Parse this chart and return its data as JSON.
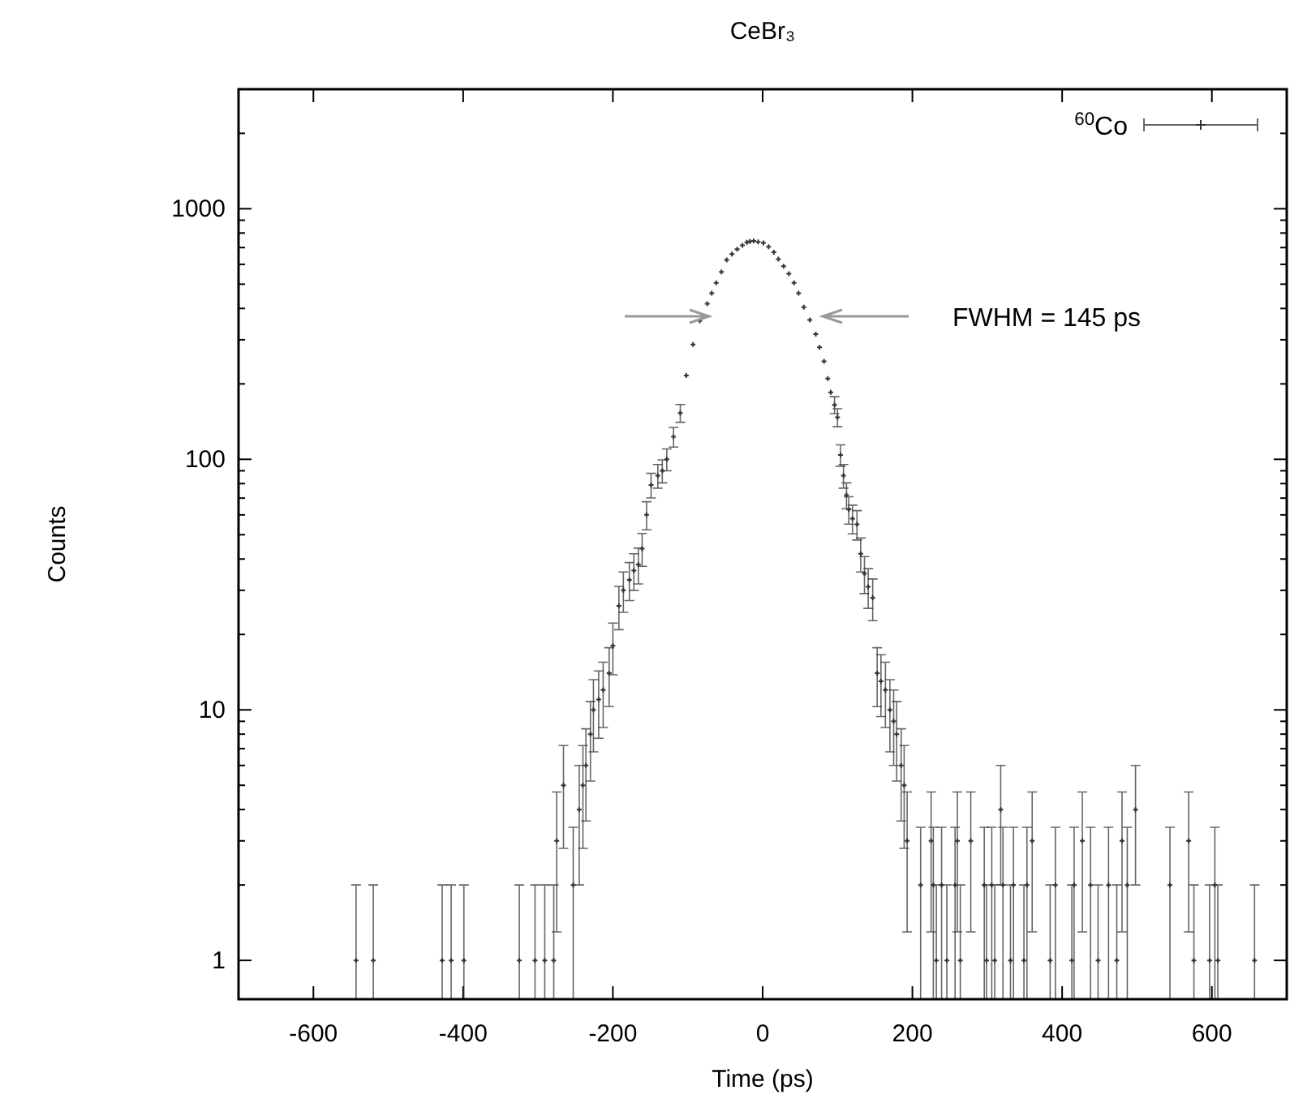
{
  "chart_data": {
    "type": "scatter",
    "title": "CeBr₃",
    "xlabel": "Time (ps)",
    "ylabel": "Counts",
    "log": "y",
    "marker": "cross",
    "legend": "top right",
    "grid": false,
    "xlim": [
      -700,
      700
    ],
    "xticks": [
      -600,
      -400,
      -200,
      0,
      200,
      400,
      600
    ],
    "ylim": [
      0.7,
      3000
    ],
    "yticks": [
      1,
      {
        "value": 2,
        "label": null
      },
      {
        "value": 3,
        "label": null
      },
      {
        "value": 4,
        "label": null
      },
      {
        "value": 5,
        "label": null
      },
      {
        "value": 6,
        "label": null
      },
      {
        "value": 7,
        "label": null
      },
      {
        "value": 8,
        "label": null
      },
      {
        "value": 9,
        "label": null
      },
      10,
      {
        "value": 20,
        "label": null
      },
      {
        "value": 30,
        "label": null
      },
      {
        "value": 40,
        "label": null
      },
      {
        "value": 50,
        "label": null
      },
      {
        "value": 60,
        "label": null
      },
      {
        "value": 70,
        "label": null
      },
      {
        "value": 80,
        "label": null
      },
      {
        "value": 90,
        "label": null
      },
      100,
      {
        "value": 200,
        "label": null
      },
      {
        "value": 300,
        "label": null
      },
      {
        "value": 400,
        "label": null
      },
      {
        "value": 500,
        "label": null
      },
      {
        "value": 600,
        "label": null
      },
      {
        "value": 700,
        "label": null
      },
      {
        "value": 800,
        "label": null
      },
      {
        "value": 900,
        "label": null
      },
      1000,
      {
        "value": 2000,
        "label": null
      }
    ],
    "annotations": [
      "FWHM = 145 ps"
    ],
    "series": [
      {
        "name": "$^{60}$Co",
        "color": "#333333",
        "x": [
          -543,
          -520,
          -428,
          -416,
          -399,
          -325,
          -304,
          -291,
          -279,
          -275,
          -266,
          -253,
          -245,
          -240,
          -236,
          -230,
          -226,
          -219,
          -213,
          -205,
          -200,
          -192,
          -186,
          -178,
          -172,
          -166,
          -161,
          -155,
          -149,
          -140,
          -134,
          -128,
          -119,
          -110,
          -102,
          -93,
          -84,
          -74,
          -68,
          -62,
          -55,
          -48,
          -41,
          -34,
          -27,
          -21,
          -17,
          -12,
          -6,
          1,
          8,
          15,
          21,
          28,
          35,
          42,
          48,
          55,
          63,
          71,
          76,
          82,
          87,
          91,
          96,
          100,
          104,
          108,
          112,
          115,
          120,
          126,
          131,
          136,
          141,
          147,
          153,
          158,
          164,
          170,
          175,
          179,
          185,
          189,
          193,
          211,
          225,
          228,
          232,
          239,
          246,
          257,
          260,
          264,
          278,
          296,
          299,
          306,
          310,
          318,
          321,
          331,
          335,
          349,
          353,
          360,
          384,
          391,
          413,
          416,
          427,
          438,
          448,
          462,
          473,
          480,
          487,
          498,
          544,
          569,
          576,
          597,
          604,
          608,
          657
        ],
        "values": [
          1,
          1,
          1,
          1,
          1,
          1,
          1,
          1,
          1,
          3,
          5,
          2,
          4,
          5,
          6,
          8,
          10,
          11,
          12,
          14,
          18,
          26,
          30,
          33,
          36,
          38,
          44,
          60,
          79,
          86,
          90,
          100,
          123,
          153,
          216,
          287,
          357,
          418,
          460,
          506,
          560,
          625,
          660,
          690,
          715,
          735,
          740,
          745,
          738,
          730,
          705,
          670,
          630,
          590,
          550,
          506,
          460,
          405,
          360,
          316,
          280,
          246,
          210,
          185,
          165,
          147,
          104,
          86,
          72,
          63,
          58,
          55,
          42,
          35,
          31,
          28,
          14,
          13,
          12,
          10,
          9,
          8,
          6,
          5,
          3,
          2,
          3,
          2,
          1,
          2,
          1,
          2,
          3,
          1,
          3,
          2,
          1,
          2,
          1,
          4,
          2,
          1,
          2,
          1,
          2,
          3,
          1,
          2,
          1,
          2,
          3,
          2,
          1,
          2,
          1,
          3,
          2,
          4,
          2,
          3,
          1,
          1,
          2,
          1,
          1
        ],
        "errors": [
          [
            0.7,
            2
          ],
          [
            0.7,
            2
          ],
          [
            0.7,
            2
          ],
          [
            0.7,
            2
          ],
          [
            0.7,
            2
          ],
          [
            0.7,
            2
          ],
          [
            0.7,
            2
          ],
          [
            0.7,
            2
          ],
          [
            0.7,
            2
          ],
          1.7,
          2.2,
          [
            0.7,
            3.4
          ],
          2,
          2.2,
          2.4,
          2.8,
          3.2,
          3.3,
          3.5,
          3.7,
          4.2,
          5.1,
          5.5,
          5.7,
          6,
          6.2,
          6.6,
          7.7,
          8.9,
          9.3,
          9.5,
          10,
          11.1,
          12.4,
          null,
          null,
          null,
          null,
          null,
          null,
          null,
          null,
          null,
          null,
          null,
          null,
          null,
          null,
          null,
          null,
          null,
          null,
          null,
          null,
          null,
          null,
          null,
          null,
          null,
          null,
          null,
          null,
          null,
          null,
          12.8,
          12.1,
          10.2,
          9.3,
          8.5,
          7.9,
          7.6,
          7.4,
          6.5,
          5.9,
          5.6,
          5.3,
          3.7,
          3.6,
          3.5,
          3.2,
          3,
          2.8,
          2.4,
          2.2,
          1.7,
          [
            0.7,
            3.4
          ],
          1.7,
          [
            0.7,
            3.4
          ],
          [
            0.7,
            2
          ],
          [
            0.7,
            3.4
          ],
          [
            0.7,
            2
          ],
          [
            0.7,
            3.4
          ],
          1.7,
          [
            0.7,
            2
          ],
          1.7,
          [
            0.7,
            3.4
          ],
          [
            0.7,
            2
          ],
          [
            0.7,
            3.4
          ],
          [
            0.7,
            2
          ],
          2,
          [
            0.7,
            3.4
          ],
          [
            0.7,
            2
          ],
          [
            0.7,
            3.4
          ],
          [
            0.7,
            2
          ],
          [
            0.7,
            3.4
          ],
          1.7,
          [
            0.7,
            2
          ],
          [
            0.7,
            3.4
          ],
          [
            0.7,
            2
          ],
          [
            0.7,
            3.4
          ],
          1.7,
          [
            0.7,
            3.4
          ],
          [
            0.7,
            2
          ],
          [
            0.7,
            3.4
          ],
          [
            0.7,
            2
          ],
          1.7,
          [
            0.7,
            3.4
          ],
          2,
          [
            0.7,
            3.4
          ],
          1.7,
          [
            0.7,
            2
          ],
          [
            0.7,
            2
          ],
          [
            0.7,
            3.4
          ],
          [
            0.7,
            2
          ],
          [
            0.7,
            2
          ]
        ]
      }
    ]
  }
}
